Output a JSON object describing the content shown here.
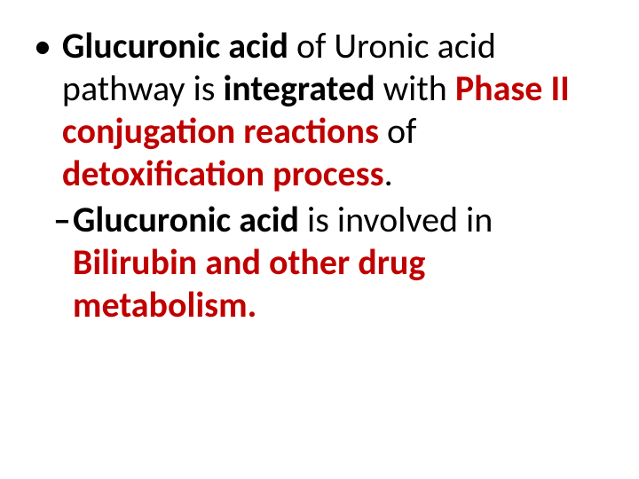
{
  "slide": {
    "background_color": "#ffffff",
    "text_color_primary": "#000000",
    "text_color_accent": "#c00000",
    "font_family": "Calibri",
    "font_size_pt": 32,
    "bullet": {
      "marker": "•",
      "runs": [
        {
          "text": "Glucuronic acid",
          "bold": true,
          "color": "#000000"
        },
        {
          "text": " of Uronic acid pathway is ",
          "bold": false,
          "color": "#000000"
        },
        {
          "text": "integrated",
          "bold": true,
          "color": "#000000"
        },
        {
          "text": " with ",
          "bold": false,
          "color": "#000000"
        },
        {
          "text": "Phase II conjugation reactions",
          "bold": true,
          "color": "#c00000"
        },
        {
          "text": " of ",
          "bold": false,
          "color": "#000000"
        },
        {
          "text": "detoxification process",
          "bold": true,
          "color": "#c00000"
        },
        {
          "text": ".",
          "bold": false,
          "color": "#000000"
        }
      ]
    },
    "sub": {
      "marker": "–",
      "runs": [
        {
          "text": "Glucuronic acid",
          "bold": true,
          "color": "#000000"
        },
        {
          "text": " is involved in ",
          "bold": false,
          "color": "#000000"
        },
        {
          "text": "Bilirubin and other drug metabolism.",
          "bold": true,
          "color": "#c00000"
        }
      ]
    }
  }
}
